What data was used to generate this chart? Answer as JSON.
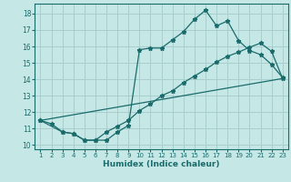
{
  "xlabel": "Humidex (Indice chaleur)",
  "xlim": [
    0.5,
    23.5
  ],
  "ylim": [
    9.75,
    18.6
  ],
  "yticks": [
    10,
    11,
    12,
    13,
    14,
    15,
    16,
    17,
    18
  ],
  "xticks": [
    1,
    2,
    3,
    4,
    5,
    6,
    7,
    8,
    9,
    10,
    11,
    12,
    13,
    14,
    15,
    16,
    17,
    18,
    19,
    20,
    21,
    22,
    23
  ],
  "bg_color": "#c5e8e6",
  "grid_color": "#a8cece",
  "line_color": "#1a6b6b",
  "line1_x": [
    1,
    2,
    3,
    4,
    5,
    6,
    7,
    8,
    9,
    10,
    11,
    12,
    13,
    14,
    15,
    16,
    17,
    18,
    19,
    20,
    21,
    22,
    23
  ],
  "line1_y": [
    11.5,
    11.3,
    10.8,
    10.7,
    10.3,
    10.3,
    10.3,
    10.8,
    11.2,
    15.8,
    15.9,
    15.9,
    16.4,
    16.9,
    17.65,
    18.2,
    17.25,
    17.55,
    16.35,
    15.75,
    15.5,
    14.9,
    14.1
  ],
  "line2_x": [
    1,
    3,
    4,
    5,
    6,
    7,
    8,
    9,
    10,
    11,
    12,
    13,
    14,
    15,
    16,
    17,
    18,
    19,
    20,
    21,
    22,
    23
  ],
  "line2_y": [
    11.5,
    10.8,
    10.7,
    10.3,
    10.3,
    10.8,
    11.15,
    11.5,
    12.1,
    12.5,
    13.0,
    13.3,
    13.8,
    14.2,
    14.6,
    15.05,
    15.4,
    15.65,
    15.95,
    16.2,
    15.7,
    14.05
  ],
  "line3_x": [
    1,
    23
  ],
  "line3_y": [
    11.5,
    14.05
  ]
}
